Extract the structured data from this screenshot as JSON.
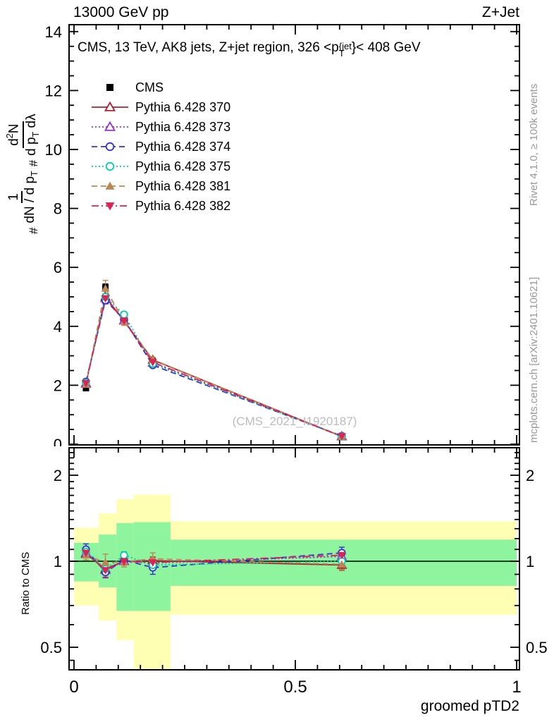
{
  "header": {
    "left_label": "13000 GeV pp",
    "right_label": "Z+Jet"
  },
  "title": {
    "pre": "CMS, 13 TeV, AK8 jets, Z+jet region, 326 <p",
    "sup": "{jet",
    "sub": "T",
    "post": "}< 408 GeV"
  },
  "ylabel_formula": {
    "hash1": "#",
    "frac1_num": "1",
    "frac1_den_pre": "dN / d p",
    "frac1_den_sub": "T",
    "hash2": "#",
    "frac2_num_pre": "d",
    "frac2_num_sup": "2",
    "frac2_num_post": "N",
    "frac2_den_pre": "d p",
    "frac2_den_sub": "T",
    "frac2_den_post": " d",
    "frac2_den_end": "λ"
  },
  "side_texts": {
    "top_right": "Rivet 4.1.0, ≥ 100k events",
    "bottom_right": "mcplots.cern.ch [arXiv:2401.10621]"
  },
  "watermark": "(CMS_2021_I1920187)",
  "ratio_ylabel": "Ratio to CMS",
  "xlabel": "groomed pTD2",
  "colors": {
    "yellow_band": "#ffffb3",
    "green_band": "#8ef59e",
    "frame": "#000000",
    "gray_text": "#999999",
    "watermark": "#bcbcbc"
  },
  "chart_data": {
    "type": "line",
    "title": "CMS, 13 TeV, AK8 jets, Z+jet region, 326 <pT{jet}< 408 GeV",
    "xlabel": "groomed pTD2",
    "x": [
      0.027,
      0.071,
      0.113,
      0.178,
      0.605
    ],
    "xlim": [
      0,
      1
    ],
    "xticks": {
      "major": [
        0,
        0.5,
        1
      ],
      "labels": [
        "0",
        "0.5",
        "1"
      ],
      "minor_step": 0.05
    },
    "main_panel": {
      "ylim": [
        0,
        14.3
      ],
      "yticks": {
        "major": [
          0,
          2,
          4,
          6,
          8,
          10,
          12,
          14
        ],
        "labels": [
          "0",
          "2",
          "4",
          "6",
          "8",
          "10",
          "12",
          "14"
        ],
        "minor_step": 0.5
      },
      "series": [
        {
          "name": "CMS",
          "color": "#000000",
          "marker": "square-filled",
          "line": "none",
          "values": [
            1.9,
            5.32,
            4.19,
            2.8,
            0.25
          ],
          "err": [
            0.08,
            0.12,
            0.1,
            0.07,
            0.04
          ]
        },
        {
          "name": "Pythia 6.428 370",
          "color": "#aa2233",
          "marker": "triangle-open",
          "line": "solid",
          "values": [
            2.05,
            5.0,
            4.19,
            2.86,
            0.26
          ],
          "err": [
            0.06,
            0.1,
            0.08,
            0.06,
            0.03
          ]
        },
        {
          "name": "Pythia 6.428 373",
          "color": "#9933cc",
          "marker": "triangle-open",
          "line": "dotted",
          "values": [
            2.07,
            4.95,
            4.19,
            2.76,
            0.27
          ],
          "err": [
            0.06,
            0.1,
            0.08,
            0.06,
            0.03
          ]
        },
        {
          "name": "Pythia 6.428 374",
          "color": "#3333cc",
          "marker": "circle-open",
          "line": "dashed",
          "values": [
            2.12,
            4.88,
            4.23,
            2.68,
            0.28
          ],
          "err": [
            0.1,
            0.12,
            0.1,
            0.08,
            0.04
          ]
        },
        {
          "name": "Pythia 6.428 375",
          "color": "#00ccaa",
          "marker": "circle-open",
          "line": "dotted",
          "values": [
            2.09,
            5.0,
            4.4,
            2.73,
            0.26
          ],
          "err": [
            0.08,
            0.1,
            0.09,
            0.07,
            0.03
          ]
        },
        {
          "name": "Pythia 6.428 381",
          "color": "#bb8855",
          "marker": "triangle-filled",
          "line": "dashed",
          "values": [
            2.02,
            5.28,
            4.17,
            2.87,
            0.26
          ],
          "err": [
            0.08,
            0.28,
            0.14,
            0.08,
            0.03
          ]
        },
        {
          "name": "Pythia 6.428 382",
          "color": "#dd2255",
          "marker": "triangle-down-filled",
          "line": "dashdot",
          "values": [
            2.07,
            4.95,
            4.19,
            2.78,
            0.27
          ],
          "err": [
            0.08,
            0.15,
            0.12,
            0.07,
            0.03
          ]
        }
      ]
    },
    "ratio_panel": {
      "scale": "log2",
      "ylim": [
        0.417,
        2.495
      ],
      "reference_line": 1,
      "yticks": {
        "major": [
          0.5,
          1,
          2
        ],
        "labels": [
          "0.5",
          "1",
          "2"
        ],
        "minor": [
          0.45,
          0.6,
          0.7,
          0.8,
          0.9,
          1.1,
          1.2,
          1.3,
          1.4,
          1.5,
          1.6,
          1.7,
          1.8,
          1.9,
          2.1,
          2.2,
          2.3,
          2.4
        ]
      },
      "bands": {
        "edges": [
          0.0,
          0.056,
          0.096,
          0.135,
          0.218,
          1.0
        ],
        "yellow": [
          [
            0.7,
            1.31
          ],
          [
            0.62,
            1.47
          ],
          [
            0.53,
            1.65
          ],
          [
            0.4,
            1.71
          ],
          [
            0.65,
            1.38
          ]
        ],
        "green": [
          [
            0.85,
            1.16
          ],
          [
            0.81,
            1.24
          ],
          [
            0.67,
            1.36
          ],
          [
            0.67,
            1.37
          ],
          [
            0.82,
            1.19
          ]
        ]
      },
      "series": [
        {
          "name": "Pythia 6.428 370",
          "values": [
            1.06,
            0.94,
            1.0,
            1.005,
            0.97
          ],
          "err": [
            0.03,
            0.03,
            0.02,
            0.03,
            0.04
          ]
        },
        {
          "name": "Pythia 6.428 373",
          "values": [
            1.07,
            0.93,
            1.0,
            0.985,
            1.04
          ],
          "err": [
            0.03,
            0.03,
            0.02,
            0.03,
            0.04
          ]
        },
        {
          "name": "Pythia 6.428 374",
          "values": [
            1.1,
            0.915,
            1.01,
            0.95,
            1.07
          ],
          "err": [
            0.05,
            0.04,
            0.03,
            0.05,
            0.05
          ]
        },
        {
          "name": "Pythia 6.428 375",
          "values": [
            1.08,
            0.94,
            1.05,
            0.97,
            1.0
          ],
          "err": [
            0.04,
            0.03,
            0.03,
            0.04,
            0.04
          ]
        },
        {
          "name": "Pythia 6.428 381",
          "values": [
            1.05,
            0.99,
            0.995,
            1.02,
            0.975
          ],
          "err": [
            0.04,
            0.07,
            0.04,
            0.05,
            0.04
          ]
        },
        {
          "name": "Pythia 6.428 382",
          "values": [
            1.07,
            0.93,
            1.0,
            0.99,
            1.05
          ],
          "err": [
            0.04,
            0.05,
            0.03,
            0.04,
            0.04
          ]
        }
      ]
    }
  }
}
